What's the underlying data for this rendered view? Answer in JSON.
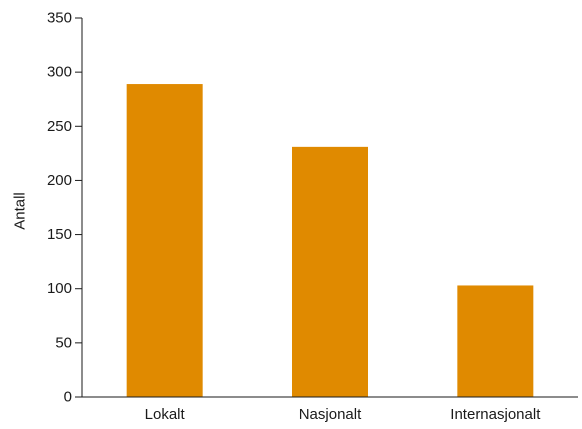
{
  "chart_data": {
    "type": "bar",
    "categories": [
      "Lokalt",
      "Nasjonalt",
      "Internasjonalt"
    ],
    "values": [
      289,
      231,
      103
    ],
    "ylabel": "Antall",
    "xlabel": "",
    "ylim": [
      0,
      350
    ],
    "yticks": [
      0,
      50,
      100,
      150,
      200,
      250,
      300,
      350
    ],
    "grid": false,
    "bar_color": "#e08a00",
    "axis_color": "#1a1a1a"
  }
}
